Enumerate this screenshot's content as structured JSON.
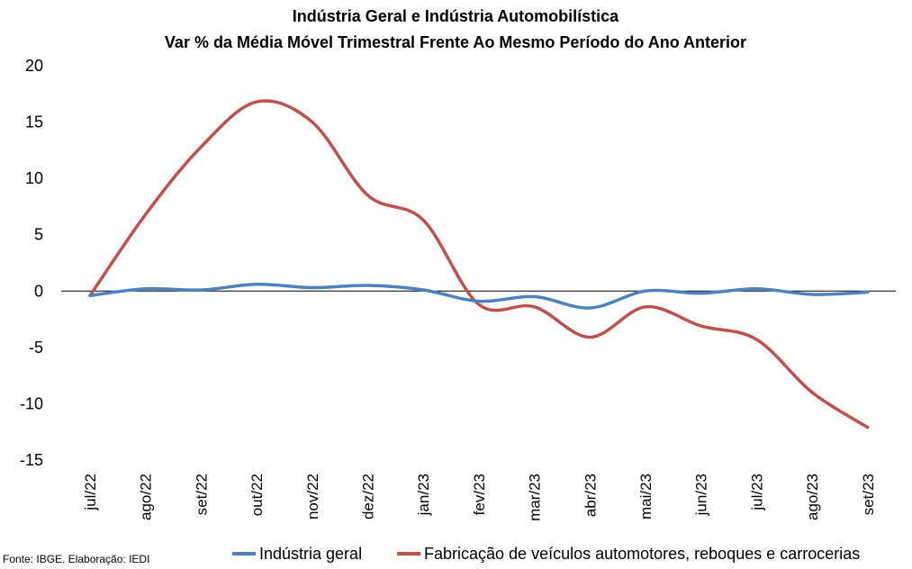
{
  "chart_data": {
    "type": "line",
    "title_line1": "Indústria Geral e Indústria Automobilística",
    "title_line2": "Var % da Média Móvel Trimestral Frente Ao Mesmo Período do Ano Anterior",
    "categories": [
      "jul/22",
      "ago/22",
      "set/22",
      "out/22",
      "nov/22",
      "dez/22",
      "jan/23",
      "fev/23",
      "mar/23",
      "abr/23",
      "mai/23",
      "jun/23",
      "jul/23",
      "ago/23",
      "set/23"
    ],
    "ylim": [
      -15,
      20
    ],
    "yticks": [
      "20",
      "15",
      "10",
      "5",
      "0",
      "-5",
      "-10",
      "-15"
    ],
    "grid": false,
    "legend_position": "bottom",
    "series": [
      {
        "name": "Indústria geral",
        "color": "#4F81BD",
        "values": [
          -0.4,
          0.2,
          0.1,
          0.6,
          0.3,
          0.5,
          0.1,
          -0.9,
          -0.5,
          -1.5,
          0.0,
          -0.2,
          0.2,
          -0.3,
          -0.1
        ]
      },
      {
        "name": "Fabricação de veículos automotores, reboques e carrocerias",
        "color": "#C0504D",
        "values": [
          -0.4,
          6.8,
          12.8,
          16.8,
          15.0,
          8.5,
          6.3,
          -1.2,
          -1.4,
          -4.1,
          -1.4,
          -3.1,
          -4.3,
          -9.0,
          -12.1
        ]
      }
    ],
    "source": "Fonte: IBGE. Elaboração: IEDI"
  }
}
